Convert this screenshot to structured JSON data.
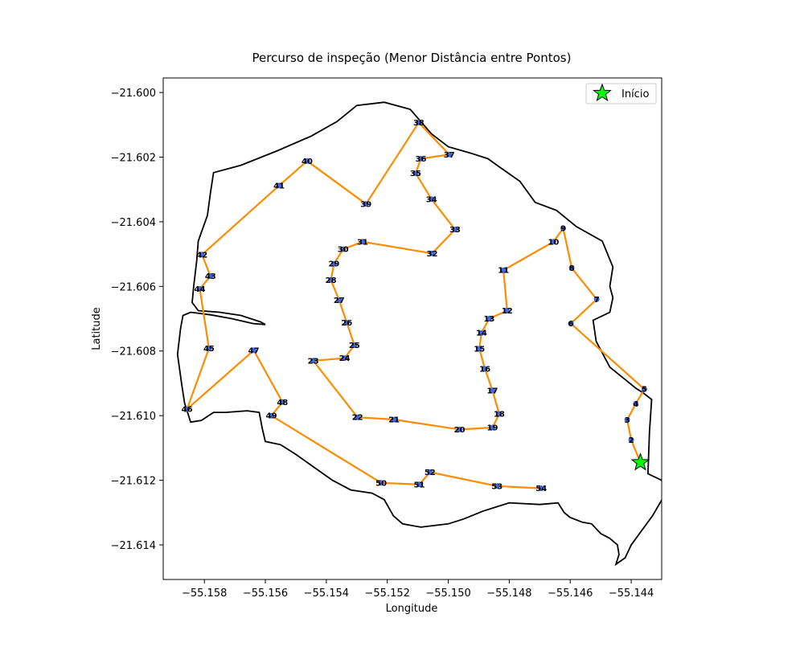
{
  "chart_data": {
    "type": "line",
    "title": "Percurso de inspeção (Menor Distância entre Pontos)",
    "xlabel": "Longitude",
    "ylabel": "Latitude",
    "xlim": [
      -55.15935,
      -55.143
    ],
    "ylim": [
      -21.61507,
      -21.59955
    ],
    "xticks": [
      -55.158,
      -55.156,
      -55.154,
      -55.152,
      -55.15,
      -55.148,
      -55.146,
      -55.144
    ],
    "xtick_labels": [
      "−55.158",
      "−55.156",
      "−55.154",
      "−55.152",
      "−55.150",
      "−55.148",
      "−55.146",
      "−55.144"
    ],
    "yticks": [
      -21.6,
      -21.602,
      -21.604,
      -21.606,
      -21.608,
      -21.61,
      -21.612,
      -21.614
    ],
    "ytick_labels": [
      "−21.600",
      "−21.602",
      "−21.604",
      "−21.606",
      "−21.608",
      "−21.610",
      "−21.612",
      "−21.614"
    ],
    "grid": false,
    "legend": {
      "placement": "top-right",
      "entries": [
        "Início"
      ]
    },
    "colors": {
      "route": "#ff8c00",
      "boundary": "#000000",
      "point": "#4169e1",
      "start": "#00ff00"
    },
    "start": {
      "label": "Início",
      "lon": -55.1437,
      "lat": -21.61145
    },
    "points": [
      {
        "id": "2",
        "lon": -55.144,
        "lat": -21.61075
      },
      {
        "id": "3",
        "lon": -55.14413,
        "lat": -21.61013
      },
      {
        "id": "4",
        "lon": -55.14385,
        "lat": -21.60963
      },
      {
        "id": "5",
        "lon": -55.14357,
        "lat": -21.60918
      },
      {
        "id": "6",
        "lon": -55.14598,
        "lat": -21.60715
      },
      {
        "id": "7",
        "lon": -55.14513,
        "lat": -21.6064
      },
      {
        "id": "8",
        "lon": -55.14595,
        "lat": -21.60543
      },
      {
        "id": "9",
        "lon": -55.14623,
        "lat": -21.6042
      },
      {
        "id": "10",
        "lon": -55.14655,
        "lat": -21.60462
      },
      {
        "id": "11",
        "lon": -55.14819,
        "lat": -21.6055
      },
      {
        "id": "12",
        "lon": -55.14807,
        "lat": -21.60675
      },
      {
        "id": "13",
        "lon": -55.14866,
        "lat": -21.607
      },
      {
        "id": "14",
        "lon": -55.14891,
        "lat": -21.60744
      },
      {
        "id": "15",
        "lon": -55.14898,
        "lat": -21.60793
      },
      {
        "id": "16",
        "lon": -55.1488,
        "lat": -21.60855
      },
      {
        "id": "17",
        "lon": -55.14855,
        "lat": -21.60922
      },
      {
        "id": "18",
        "lon": -55.14833,
        "lat": -21.60995
      },
      {
        "id": "19",
        "lon": -55.14855,
        "lat": -21.61037
      },
      {
        "id": "20",
        "lon": -55.14963,
        "lat": -21.61043
      },
      {
        "id": "21",
        "lon": -55.15178,
        "lat": -21.61012
      },
      {
        "id": "22",
        "lon": -55.15298,
        "lat": -21.61005
      },
      {
        "id": "23",
        "lon": -55.15443,
        "lat": -21.6083
      },
      {
        "id": "24",
        "lon": -55.1534,
        "lat": -21.60822
      },
      {
        "id": "25",
        "lon": -55.15308,
        "lat": -21.60782
      },
      {
        "id": "26",
        "lon": -55.15333,
        "lat": -21.60712
      },
      {
        "id": "27",
        "lon": -55.15358,
        "lat": -21.60643
      },
      {
        "id": "28",
        "lon": -55.15385,
        "lat": -21.6058
      },
      {
        "id": "29",
        "lon": -55.15375,
        "lat": -21.6053
      },
      {
        "id": "30",
        "lon": -55.15345,
        "lat": -21.60485
      },
      {
        "id": "31",
        "lon": -55.15281,
        "lat": -21.60462
      },
      {
        "id": "32",
        "lon": -55.15053,
        "lat": -21.60498
      },
      {
        "id": "33",
        "lon": -55.14978,
        "lat": -21.60424
      },
      {
        "id": "34",
        "lon": -55.15055,
        "lat": -21.6033
      },
      {
        "id": "35",
        "lon": -55.15107,
        "lat": -21.6025
      },
      {
        "id": "36",
        "lon": -55.1509,
        "lat": -21.60205
      },
      {
        "id": "37",
        "lon": -55.14997,
        "lat": -21.60192
      },
      {
        "id": "38",
        "lon": -55.15097,
        "lat": -21.60093
      },
      {
        "id": "39",
        "lon": -55.1527,
        "lat": -21.60345
      },
      {
        "id": "40",
        "lon": -55.15463,
        "lat": -21.60212
      },
      {
        "id": "41",
        "lon": -55.15555,
        "lat": -21.60288
      },
      {
        "id": "42",
        "lon": -55.15808,
        "lat": -21.60502
      },
      {
        "id": "43",
        "lon": -55.1578,
        "lat": -21.60568
      },
      {
        "id": "44",
        "lon": -55.15815,
        "lat": -21.60608
      },
      {
        "id": "45",
        "lon": -55.15785,
        "lat": -21.60792
      },
      {
        "id": "46",
        "lon": -55.15857,
        "lat": -21.6098
      },
      {
        "id": "47",
        "lon": -55.15638,
        "lat": -21.60798
      },
      {
        "id": "48",
        "lon": -55.15544,
        "lat": -21.60958
      },
      {
        "id": "49",
        "lon": -55.1558,
        "lat": -21.61
      },
      {
        "id": "50",
        "lon": -55.1522,
        "lat": -21.61208
      },
      {
        "id": "51",
        "lon": -55.15095,
        "lat": -21.61213
      },
      {
        "id": "52",
        "lon": -55.1506,
        "lat": -21.61175
      },
      {
        "id": "53",
        "lon": -55.1484,
        "lat": -21.61218
      },
      {
        "id": "54",
        "lon": -55.14695,
        "lat": -21.61225
      }
    ],
    "boundary": [
      [
        -55.143,
        -21.612
      ],
      [
        -55.14345,
        -21.6118
      ],
      [
        -55.1434,
        -21.6105
      ],
      [
        -55.14333,
        -21.6095
      ],
      [
        -55.1436,
        -21.6093
      ],
      [
        -55.14385,
        -21.60915
      ],
      [
        -55.1447,
        -21.6085
      ],
      [
        -55.14515,
        -21.6077
      ],
      [
        -55.14525,
        -21.60705
      ],
      [
        -55.1447,
        -21.6068
      ],
      [
        -55.1446,
        -21.60635
      ],
      [
        -55.1447,
        -21.606
      ],
      [
        -55.1446,
        -21.6054
      ],
      [
        -55.14495,
        -21.6046
      ],
      [
        -55.1458,
        -21.60415
      ],
      [
        -55.14645,
        -21.60365
      ],
      [
        -55.14715,
        -21.6034
      ],
      [
        -55.14765,
        -21.60275
      ],
      [
        -55.1484,
        -21.60225
      ],
      [
        -55.1487,
        -21.60205
      ],
      [
        -55.14925,
        -21.60188
      ],
      [
        -55.15,
        -21.60168
      ],
      [
        -55.15055,
        -21.60128
      ],
      [
        -55.15125,
        -21.60052
      ],
      [
        -55.1521,
        -21.6003
      ],
      [
        -55.153,
        -21.6004
      ],
      [
        -55.15365,
        -21.6009
      ],
      [
        -55.1545,
        -21.60135
      ],
      [
        -55.1556,
        -21.6018
      ],
      [
        -55.1568,
        -21.60225
      ],
      [
        -55.1577,
        -21.60248
      ],
      [
        -55.1578,
        -21.6031
      ],
      [
        -55.1579,
        -21.6038
      ],
      [
        -55.1582,
        -21.6046
      ],
      [
        -55.15825,
        -21.6052
      ],
      [
        -55.15835,
        -21.606
      ],
      [
        -55.1584,
        -21.6065
      ],
      [
        -55.1582,
        -21.60675
      ],
      [
        -55.1575,
        -21.6068
      ],
      [
        -55.1568,
        -21.6069
      ],
      [
        -55.15615,
        -21.6071
      ],
      [
        -55.156,
        -21.60718
      ],
      [
        -55.1564,
        -21.60715
      ],
      [
        -55.1571,
        -21.607
      ],
      [
        -55.1578,
        -21.60688
      ],
      [
        -55.15845,
        -21.6068
      ],
      [
        -55.1587,
        -21.6069
      ],
      [
        -55.15878,
        -21.6073
      ],
      [
        -55.15888,
        -21.6081
      ],
      [
        -55.15875,
        -21.609
      ],
      [
        -55.15865,
        -21.6096
      ],
      [
        -55.15845,
        -21.6102
      ],
      [
        -55.1581,
        -21.61015
      ],
      [
        -55.1577,
        -21.6099
      ],
      [
        -55.1573,
        -21.6099
      ],
      [
        -55.1566,
        -21.60985
      ],
      [
        -55.1562,
        -21.6099
      ],
      [
        -55.1561,
        -21.6104
      ],
      [
        -55.156,
        -21.6108
      ],
      [
        -55.1555,
        -21.6109
      ],
      [
        -55.155,
        -21.6112
      ],
      [
        -55.1544,
        -21.6116
      ],
      [
        -55.1538,
        -21.612
      ],
      [
        -55.1532,
        -21.6123
      ],
      [
        -55.1525,
        -21.6124
      ],
      [
        -55.1521,
        -21.6126
      ],
      [
        -55.1518,
        -21.6131
      ],
      [
        -55.1515,
        -21.61335
      ],
      [
        -55.1509,
        -21.61345
      ],
      [
        -55.15,
        -21.61335
      ],
      [
        -55.1495,
        -21.6132
      ],
      [
        -55.14885,
        -21.61295
      ],
      [
        -55.148,
        -21.6127
      ],
      [
        -55.147,
        -21.61275
      ],
      [
        -55.1464,
        -21.6127
      ],
      [
        -55.1462,
        -21.613
      ],
      [
        -55.146,
        -21.61315
      ],
      [
        -55.1456,
        -21.6133
      ],
      [
        -55.1453,
        -21.61335
      ],
      [
        -55.145,
        -21.61365
      ],
      [
        -55.1447,
        -21.6138
      ],
      [
        -55.14445,
        -21.614
      ],
      [
        -55.1444,
        -21.6143
      ],
      [
        -55.1445,
        -21.6146
      ],
      [
        -55.1442,
        -21.6144
      ],
      [
        -55.144,
        -21.614
      ],
      [
        -55.1433,
        -21.6131
      ],
      [
        -55.1429,
        -21.61245
      ],
      [
        -55.143,
        -21.612
      ]
    ]
  }
}
